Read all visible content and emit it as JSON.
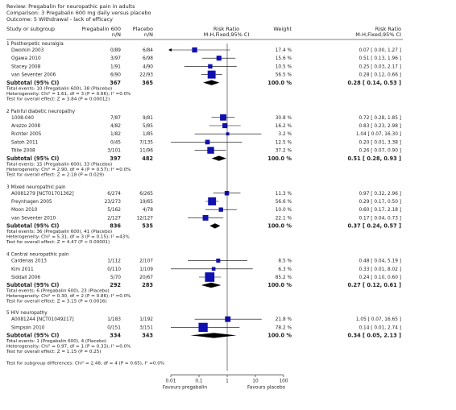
{
  "header": {
    "review": "Review:  Pregabalin for neuropathic pain in adults",
    "comparison": "Comparison:  3 Pregabalin 600 mg daily versus placebo",
    "outcome": "Outcome:  5 Withdrawal - lack of efficacy"
  },
  "columns": {
    "study": "Study or subgroup",
    "treatment": "Pregabalin 600",
    "treatment_sub": "n/N",
    "control": "Placebo",
    "control_sub": "n/N",
    "effect": "Risk Ratio",
    "effect_sub": "M-H,Fixed,95% CI",
    "weight": "Weight",
    "ci": "Risk Ratio",
    "ci_sub": "M-H,Fixed,95% CI"
  },
  "axis": {
    "ticks": [
      "0.01",
      "0.1",
      "1",
      "10",
      "100"
    ],
    "left_label": "Favours pregabalin",
    "right_label": "Favours placebo"
  },
  "footer": "Test for subgroup differences: Chi² = 2.48, df = 4 (P = 0.65), I² =0.0%",
  "colors": {
    "study_marker": "#1010b0",
    "summary": "#000000",
    "line": "#000000"
  },
  "chart_data": {
    "type": "forest",
    "scale": "log",
    "xlim": [
      0.01,
      100
    ],
    "null_value": 1,
    "subgroups": [
      {
        "title": "1 Postherpetic neuralgia",
        "studies": [
          {
            "name": "Dworkin 2003",
            "t": "0/89",
            "c": "6/84",
            "weight": "17.4 %",
            "ci_text": "0.07 [ 0.00, 1.27 ]",
            "rr": 0.07,
            "lo": 0.004,
            "hi": 1.27,
            "w": 17.4,
            "arrow_left": true
          },
          {
            "name": "Ogawa 2010",
            "t": "3/97",
            "c": "6/98",
            "weight": "15.6 %",
            "ci_text": "0.51 [ 0.13, 1.96 ]",
            "rr": 0.51,
            "lo": 0.13,
            "hi": 1.96,
            "w": 15.6
          },
          {
            "name": "Stacey 2008",
            "t": "1/91",
            "c": "4/90",
            "weight": "10.5 %",
            "ci_text": "0.25 [ 0.03, 2.17 ]",
            "rr": 0.25,
            "lo": 0.03,
            "hi": 2.17,
            "w": 10.5
          },
          {
            "name": "van Seventer 2006",
            "t": "6/90",
            "c": "22/93",
            "weight": "56.5 %",
            "ci_text": "0.28 [ 0.12, 0.66 ]",
            "rr": 0.28,
            "lo": 0.12,
            "hi": 0.66,
            "w": 56.5
          }
        ],
        "subtotal": {
          "label": "Subtotal (95% CI)",
          "t": "367",
          "c": "365",
          "weight": "100.0 %",
          "ci_text": "0.28 [ 0.14, 0.53 ]",
          "rr": 0.28,
          "lo": 0.14,
          "hi": 0.53
        },
        "notes": [
          "Total events: 10 (Pregabalin 600), 38 (Placebo)",
          "Heterogeneity: Chi² = 1.61, df = 3 (P = 0.66); I² =0.0%",
          "Test for overall effect: Z = 3.84 (P = 0.00012)"
        ]
      },
      {
        "title": "2 Painful diabetic neuropathy",
        "studies": [
          {
            "name": "1008-040",
            "t": "7/87",
            "c": "9/81",
            "weight": "30.8 %",
            "ci_text": "0.72 [ 0.28, 1.85 ]",
            "rr": 0.72,
            "lo": 0.28,
            "hi": 1.85,
            "w": 30.8
          },
          {
            "name": "Arezzo 2008",
            "t": "4/82",
            "c": "5/85",
            "weight": "16.2 %",
            "ci_text": "0.83 [ 0.23, 2.98 ]",
            "rr": 0.83,
            "lo": 0.23,
            "hi": 2.98,
            "w": 16.2
          },
          {
            "name": "Richter 2005",
            "t": "1/82",
            "c": "1/85",
            "weight": "3.2 %",
            "ci_text": "1.04 [ 0.07, 16.30 ]",
            "rr": 1.04,
            "lo": 0.07,
            "hi": 16.3,
            "w": 3.2
          },
          {
            "name": "Satoh 2011",
            "t": "0/45",
            "c": "7/135",
            "weight": "12.5 %",
            "ci_text": "0.20 [ 0.01, 3.38 ]",
            "rr": 0.2,
            "lo": 0.01,
            "hi": 3.38,
            "w": 12.5
          },
          {
            "name": "Tölle 2008",
            "t": "3/101",
            "c": "11/96",
            "weight": "37.2 %",
            "ci_text": "0.26 [ 0.07, 0.90 ]",
            "rr": 0.26,
            "lo": 0.07,
            "hi": 0.9,
            "w": 37.2
          }
        ],
        "subtotal": {
          "label": "Subtotal (95% CI)",
          "t": "397",
          "c": "482",
          "weight": "100.0 %",
          "ci_text": "0.51 [ 0.28, 0.93 ]",
          "rr": 0.51,
          "lo": 0.28,
          "hi": 0.93
        },
        "notes": [
          "Total events: 15 (Pregabalin 600), 33 (Placebo)",
          "Heterogeneity: Chi² = 2.90, df = 4 (P = 0.57); I² =0.0%",
          "Test for overall effect: Z = 2.18 (P = 0.029)"
        ]
      },
      {
        "title": "3 Mixed neuropathic pain",
        "studies": [
          {
            "name": "A0081279 [NCT01701362]",
            "t": "6/274",
            "c": "6/265",
            "weight": "11.3 %",
            "ci_text": "0.97 [ 0.32, 2.96 ]",
            "rr": 0.97,
            "lo": 0.32,
            "hi": 2.96,
            "w": 11.3
          },
          {
            "name": "Freynhagen 2005",
            "t": "23/273",
            "c": "19/65",
            "weight": "56.6 %",
            "ci_text": "0.29 [ 0.17, 0.50 ]",
            "rr": 0.29,
            "lo": 0.17,
            "hi": 0.5,
            "w": 56.6
          },
          {
            "name": "Moon 2010",
            "t": "5/162",
            "c": "4/78",
            "weight": "10.0 %",
            "ci_text": "0.60 [ 0.17, 2.18 ]",
            "rr": 0.6,
            "lo": 0.17,
            "hi": 2.18,
            "w": 10.0
          },
          {
            "name": "van Seventer 2010",
            "t": "2/127",
            "c": "12/127",
            "weight": "22.1 %",
            "ci_text": "0.17 [ 0.04, 0.73 ]",
            "rr": 0.17,
            "lo": 0.04,
            "hi": 0.73,
            "w": 22.1
          }
        ],
        "subtotal": {
          "label": "Subtotal (95% CI)",
          "t": "836",
          "c": "535",
          "weight": "100.0 %",
          "ci_text": "0.37 [ 0.24, 0.57 ]",
          "rr": 0.37,
          "lo": 0.24,
          "hi": 0.57
        },
        "notes": [
          "Total events: 36 (Pregabalin 600), 41 (Placebo)",
          "Heterogeneity: Chi² = 5.31, df = 3 (P = 0.15); I² =43%",
          "Test for overall effect: Z = 4.47 (P < 0.00001)"
        ]
      },
      {
        "title": "4 Central neuropathic pain",
        "studies": [
          {
            "name": "Cardenas 2013",
            "t": "1/112",
            "c": "2/107",
            "weight": "8.5 %",
            "ci_text": "0.48 [ 0.04, 5.19 ]",
            "rr": 0.48,
            "lo": 0.04,
            "hi": 5.19,
            "w": 8.5
          },
          {
            "name": "Kim 2011",
            "t": "0/110",
            "c": "1/109",
            "weight": "6.3 %",
            "ci_text": "0.33 [ 0.01, 8.02 ]",
            "rr": 0.33,
            "lo": 0.01,
            "hi": 8.02,
            "w": 6.3
          },
          {
            "name": "Siddall 2006",
            "t": "5/70",
            "c": "20/67",
            "weight": "85.2 %",
            "ci_text": "0.24 [ 0.10, 0.60 ]",
            "rr": 0.24,
            "lo": 0.1,
            "hi": 0.6,
            "w": 85.2
          }
        ],
        "subtotal": {
          "label": "Subtotal (95% CI)",
          "t": "292",
          "c": "283",
          "weight": "100.0 %",
          "ci_text": "0.27 [ 0.12, 0.61 ]",
          "rr": 0.27,
          "lo": 0.12,
          "hi": 0.61
        },
        "notes": [
          "Total events: 6 (Pregabalin 600), 23 (Placebo)",
          "Heterogeneity: Chi² = 0.30, df = 2 (P = 0.86); I² =0.0%",
          "Test for overall effect: Z = 3.15 (P = 0.0016)"
        ]
      },
      {
        "title": "5 HIV neuropathy",
        "studies": [
          {
            "name": "A0081244 [NCT01049217]",
            "t": "1/183",
            "c": "1/192",
            "weight": "21.8 %",
            "ci_text": "1.05 [ 0.07, 16.65 ]",
            "rr": 1.05,
            "lo": 0.07,
            "hi": 16.65,
            "w": 21.8
          },
          {
            "name": "Simpson 2010",
            "t": "0/151",
            "c": "3/151",
            "weight": "78.2 %",
            "ci_text": "0.14 [ 0.01, 2.74 ]",
            "rr": 0.14,
            "lo": 0.01,
            "hi": 2.74,
            "w": 78.2
          }
        ],
        "subtotal": {
          "label": "Subtotal (95% CI)",
          "t": "334",
          "c": "343",
          "weight": "100.0 %",
          "ci_text": "0.34 [ 0.05, 2.13 ]",
          "rr": 0.34,
          "lo": 0.05,
          "hi": 2.13
        },
        "notes": [
          "Total events: 1 (Pregabalin 600), 4 (Placebo)",
          "Heterogeneity: Chi² = 0.97, df = 1 (P = 0.33); I² =0.0%",
          "Test for overall effect: Z = 1.15 (P = 0.25)"
        ]
      }
    ]
  }
}
